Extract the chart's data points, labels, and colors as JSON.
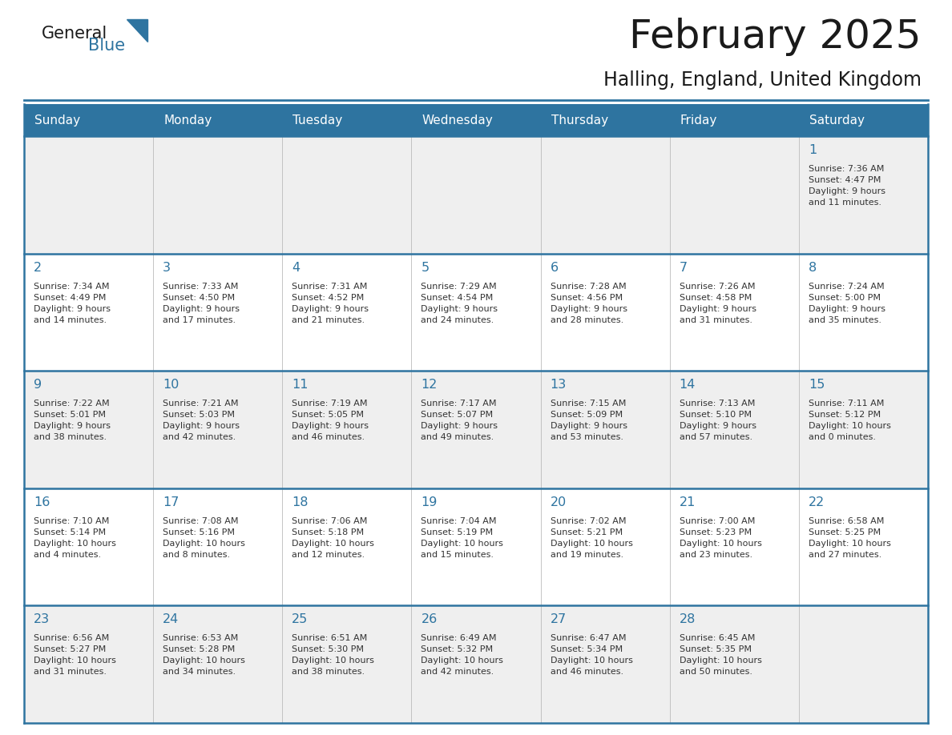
{
  "title": "February 2025",
  "subtitle": "Halling, England, United Kingdom",
  "days_of_week": [
    "Sunday",
    "Monday",
    "Tuesday",
    "Wednesday",
    "Thursday",
    "Friday",
    "Saturday"
  ],
  "header_bg": "#2E74A0",
  "header_text": "#FFFFFF",
  "cell_bg_odd": "#EFEFEF",
  "cell_bg_even": "#FFFFFF",
  "border_color": "#2E74A0",
  "day_number_color": "#2E74A0",
  "info_text_color": "#333333",
  "title_color": "#1a1a1a",
  "subtitle_color": "#1a1a1a",
  "logo_general_color": "#1a1a1a",
  "logo_blue_color": "#2E74A0",
  "calendar_data": [
    [
      {
        "day": null,
        "info": ""
      },
      {
        "day": null,
        "info": ""
      },
      {
        "day": null,
        "info": ""
      },
      {
        "day": null,
        "info": ""
      },
      {
        "day": null,
        "info": ""
      },
      {
        "day": null,
        "info": ""
      },
      {
        "day": 1,
        "info": "Sunrise: 7:36 AM\nSunset: 4:47 PM\nDaylight: 9 hours\nand 11 minutes."
      }
    ],
    [
      {
        "day": 2,
        "info": "Sunrise: 7:34 AM\nSunset: 4:49 PM\nDaylight: 9 hours\nand 14 minutes."
      },
      {
        "day": 3,
        "info": "Sunrise: 7:33 AM\nSunset: 4:50 PM\nDaylight: 9 hours\nand 17 minutes."
      },
      {
        "day": 4,
        "info": "Sunrise: 7:31 AM\nSunset: 4:52 PM\nDaylight: 9 hours\nand 21 minutes."
      },
      {
        "day": 5,
        "info": "Sunrise: 7:29 AM\nSunset: 4:54 PM\nDaylight: 9 hours\nand 24 minutes."
      },
      {
        "day": 6,
        "info": "Sunrise: 7:28 AM\nSunset: 4:56 PM\nDaylight: 9 hours\nand 28 minutes."
      },
      {
        "day": 7,
        "info": "Sunrise: 7:26 AM\nSunset: 4:58 PM\nDaylight: 9 hours\nand 31 minutes."
      },
      {
        "day": 8,
        "info": "Sunrise: 7:24 AM\nSunset: 5:00 PM\nDaylight: 9 hours\nand 35 minutes."
      }
    ],
    [
      {
        "day": 9,
        "info": "Sunrise: 7:22 AM\nSunset: 5:01 PM\nDaylight: 9 hours\nand 38 minutes."
      },
      {
        "day": 10,
        "info": "Sunrise: 7:21 AM\nSunset: 5:03 PM\nDaylight: 9 hours\nand 42 minutes."
      },
      {
        "day": 11,
        "info": "Sunrise: 7:19 AM\nSunset: 5:05 PM\nDaylight: 9 hours\nand 46 minutes."
      },
      {
        "day": 12,
        "info": "Sunrise: 7:17 AM\nSunset: 5:07 PM\nDaylight: 9 hours\nand 49 minutes."
      },
      {
        "day": 13,
        "info": "Sunrise: 7:15 AM\nSunset: 5:09 PM\nDaylight: 9 hours\nand 53 minutes."
      },
      {
        "day": 14,
        "info": "Sunrise: 7:13 AM\nSunset: 5:10 PM\nDaylight: 9 hours\nand 57 minutes."
      },
      {
        "day": 15,
        "info": "Sunrise: 7:11 AM\nSunset: 5:12 PM\nDaylight: 10 hours\nand 0 minutes."
      }
    ],
    [
      {
        "day": 16,
        "info": "Sunrise: 7:10 AM\nSunset: 5:14 PM\nDaylight: 10 hours\nand 4 minutes."
      },
      {
        "day": 17,
        "info": "Sunrise: 7:08 AM\nSunset: 5:16 PM\nDaylight: 10 hours\nand 8 minutes."
      },
      {
        "day": 18,
        "info": "Sunrise: 7:06 AM\nSunset: 5:18 PM\nDaylight: 10 hours\nand 12 minutes."
      },
      {
        "day": 19,
        "info": "Sunrise: 7:04 AM\nSunset: 5:19 PM\nDaylight: 10 hours\nand 15 minutes."
      },
      {
        "day": 20,
        "info": "Sunrise: 7:02 AM\nSunset: 5:21 PM\nDaylight: 10 hours\nand 19 minutes."
      },
      {
        "day": 21,
        "info": "Sunrise: 7:00 AM\nSunset: 5:23 PM\nDaylight: 10 hours\nand 23 minutes."
      },
      {
        "day": 22,
        "info": "Sunrise: 6:58 AM\nSunset: 5:25 PM\nDaylight: 10 hours\nand 27 minutes."
      }
    ],
    [
      {
        "day": 23,
        "info": "Sunrise: 6:56 AM\nSunset: 5:27 PM\nDaylight: 10 hours\nand 31 minutes."
      },
      {
        "day": 24,
        "info": "Sunrise: 6:53 AM\nSunset: 5:28 PM\nDaylight: 10 hours\nand 34 minutes."
      },
      {
        "day": 25,
        "info": "Sunrise: 6:51 AM\nSunset: 5:30 PM\nDaylight: 10 hours\nand 38 minutes."
      },
      {
        "day": 26,
        "info": "Sunrise: 6:49 AM\nSunset: 5:32 PM\nDaylight: 10 hours\nand 42 minutes."
      },
      {
        "day": 27,
        "info": "Sunrise: 6:47 AM\nSunset: 5:34 PM\nDaylight: 10 hours\nand 46 minutes."
      },
      {
        "day": 28,
        "info": "Sunrise: 6:45 AM\nSunset: 5:35 PM\nDaylight: 10 hours\nand 50 minutes."
      },
      {
        "day": null,
        "info": ""
      }
    ]
  ]
}
